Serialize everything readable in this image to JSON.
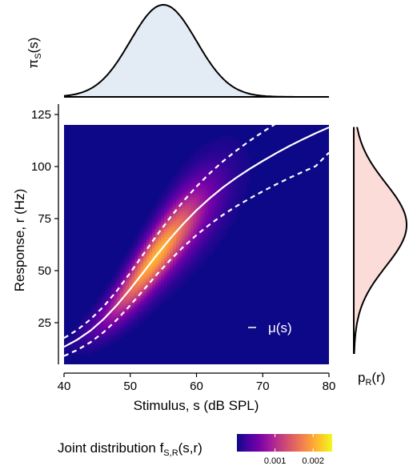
{
  "chart_data": {
    "type": "heatmap",
    "main": {
      "xlabel": "Stimulus, s (dB SPL)",
      "ylabel": "Response, r (Hz)",
      "xlim": [
        40,
        80
      ],
      "ylim": [
        5,
        130
      ],
      "heatmap_extent": {
        "x": [
          40,
          80
        ],
        "y": [
          5,
          120
        ]
      },
      "xticks": [
        40,
        50,
        60,
        70,
        80
      ],
      "yticks": [
        25,
        50,
        75,
        100,
        125
      ],
      "mean_curve": {
        "legend_label": "μ(s)",
        "x": [
          40,
          42,
          44,
          46,
          48,
          50,
          52,
          54,
          56,
          58,
          60,
          62,
          64,
          66,
          68,
          70,
          72,
          74,
          76,
          78,
          80
        ],
        "y": [
          13.4,
          16.8,
          21.2,
          26.8,
          33.5,
          41.2,
          49.3,
          57.5,
          65.3,
          72.5,
          79.0,
          84.8,
          90.0,
          94.6,
          98.8,
          102.7,
          106.4,
          109.8,
          113.0,
          116.0,
          118.8
        ]
      },
      "band_lower": {
        "x": [
          40,
          42,
          44,
          46,
          48,
          50,
          52,
          54,
          56,
          58,
          60,
          62,
          64,
          66,
          68,
          70,
          72,
          74,
          76,
          78,
          80
        ],
        "y": [
          9.0,
          11.9,
          15.6,
          20.5,
          26.5,
          33.4,
          40.7,
          48.1,
          55.0,
          61.4,
          67.1,
          72.2,
          76.8,
          80.9,
          84.6,
          88.1,
          91.4,
          94.5,
          97.4,
          100.2,
          106.7
        ]
      },
      "band_upper": {
        "x": [
          40,
          42,
          44,
          46,
          48,
          50,
          52,
          54,
          56,
          58,
          60,
          62,
          64,
          66,
          68,
          70,
          72,
          74,
          76,
          78,
          80
        ],
        "y": [
          17.6,
          21.5,
          26.6,
          32.9,
          40.4,
          49.0,
          58.0,
          66.9,
          75.4,
          83.3,
          90.4,
          96.8,
          102.5,
          107.6,
          112.3,
          116.6,
          120.6,
          124.3,
          127.8,
          131.0,
          134.0
        ]
      },
      "colors": {
        "background": "#0d0887",
        "line": "#ffffff",
        "colormap": [
          "#0d0887",
          "#46039f",
          "#7201a8",
          "#9c179e",
          "#bd3786",
          "#d8576b",
          "#ed7953",
          "#fb9f3a",
          "#fdca26",
          "#f0f921"
        ]
      }
    },
    "top_marginal": {
      "ylabel": "πS(s)",
      "peak_x": 55,
      "sd": 5,
      "fill": "#e3ebf5",
      "stroke": "#000000"
    },
    "right_marginal": {
      "xlabel": "pR(r)",
      "peak_y": 72,
      "sd": 20,
      "fill": "#fbdcd8",
      "stroke": "#000000"
    },
    "colorbar": {
      "label": "Joint distribution fS,R(s,r)",
      "ticks": [
        0.001,
        0.002
      ],
      "tick_labels": [
        "0.001",
        "0.002"
      ],
      "range": [
        0,
        0.0025
      ]
    }
  }
}
